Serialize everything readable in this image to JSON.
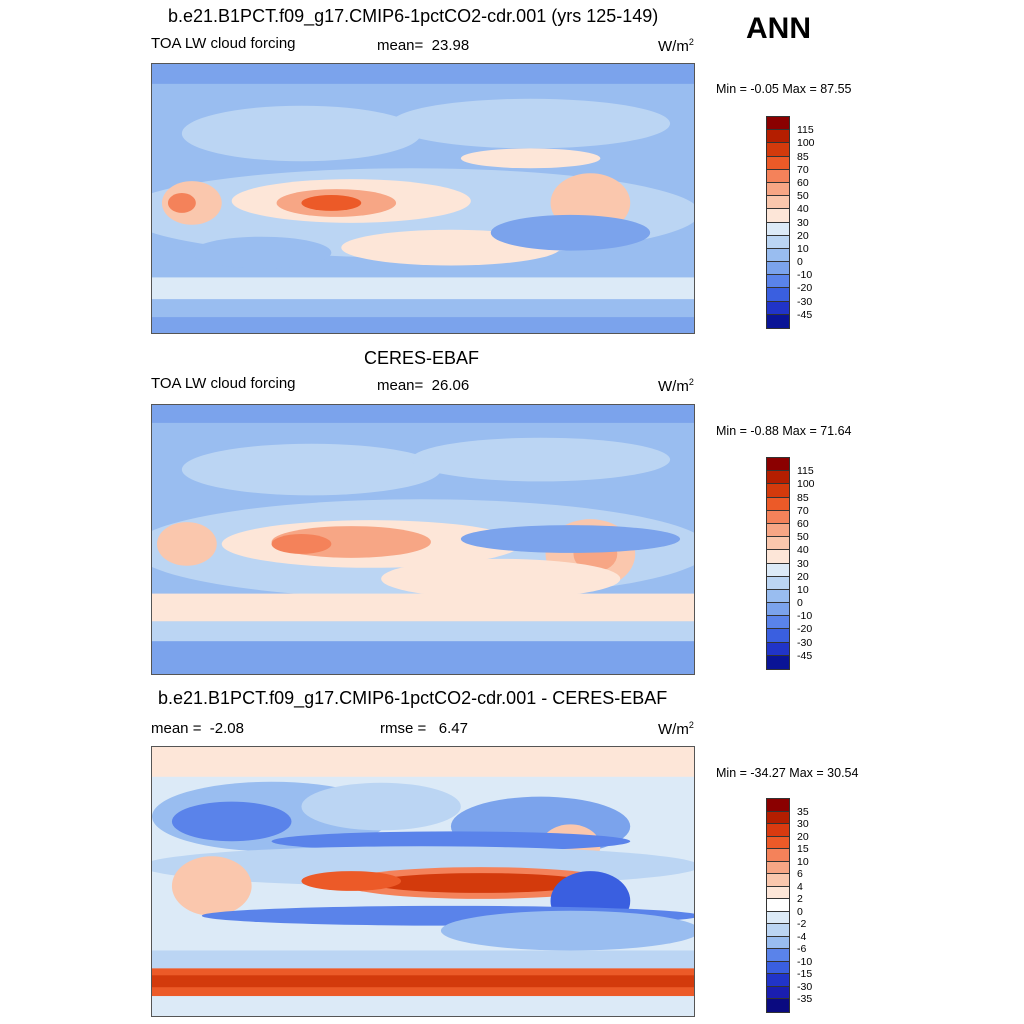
{
  "season": "ANN",
  "panels": [
    {
      "title": "b.e21.B1PCT.f09_g17.CMIP6-1pctCO2-cdr.001 (yrs 125-149)",
      "variable": "TOA LW cloud forcing",
      "stat_label": "mean=",
      "stat_value": "23.98",
      "units_base": "W/m",
      "units_exp": "2",
      "minmax": "Min =  -0.05 Max =  87.55",
      "colorbar": {
        "labels": [
          "115",
          "100",
          "85",
          "70",
          "60",
          "50",
          "40",
          "30",
          "20",
          "10",
          "0",
          "-10",
          "-20",
          "-30",
          "-45"
        ],
        "colors": [
          "#8b0000",
          "#b41e00",
          "#d33a0c",
          "#ec5a28",
          "#f4825a",
          "#f7a685",
          "#fac7ad",
          "#fde6d8",
          "#dceaf7",
          "#bbd5f3",
          "#99bdf0",
          "#7ba3ec",
          "#5a83ea",
          "#3a5fe0",
          "#2134c8",
          "#0a1496"
        ]
      }
    },
    {
      "title": "CERES-EBAF",
      "variable": "TOA LW cloud forcing",
      "stat_label": "mean=",
      "stat_value": "26.06",
      "units_base": "W/m",
      "units_exp": "2",
      "minmax": "Min =  -0.88 Max =  71.64",
      "colorbar": {
        "labels": [
          "115",
          "100",
          "85",
          "70",
          "60",
          "50",
          "40",
          "30",
          "20",
          "10",
          "0",
          "-10",
          "-20",
          "-30",
          "-45"
        ],
        "colors": [
          "#8b0000",
          "#b41e00",
          "#d33a0c",
          "#ec5a28",
          "#f4825a",
          "#f7a685",
          "#fac7ad",
          "#fde6d8",
          "#dceaf7",
          "#bbd5f3",
          "#99bdf0",
          "#7ba3ec",
          "#5a83ea",
          "#3a5fe0",
          "#2134c8",
          "#0a1496"
        ]
      }
    },
    {
      "title": "b.e21.B1PCT.f09_g17.CMIP6-1pctCO2-cdr.001 - CERES-EBAF",
      "mean_label": "mean =",
      "mean_value": "-2.08",
      "rmse_label": "rmse =",
      "rmse_value": "6.47",
      "units_base": "W/m",
      "units_exp": "2",
      "minmax": "Min = -34.27 Max =  30.54",
      "colorbar": {
        "labels": [
          "35",
          "30",
          "20",
          "15",
          "10",
          "6",
          "4",
          "2",
          "0",
          "-2",
          "-4",
          "-6",
          "-10",
          "-15",
          "-30",
          "-35"
        ],
        "colors": [
          "#8b0000",
          "#b41e00",
          "#d93a10",
          "#ec5a28",
          "#f4825a",
          "#f7a685",
          "#fac7ad",
          "#fde6d8",
          "#ffffff",
          "#dceaf7",
          "#bbd5f3",
          "#99bdf0",
          "#5a83ea",
          "#3a5fe0",
          "#2134c8",
          "#1a1eb0",
          "#0a0a80"
        ]
      }
    }
  ]
}
